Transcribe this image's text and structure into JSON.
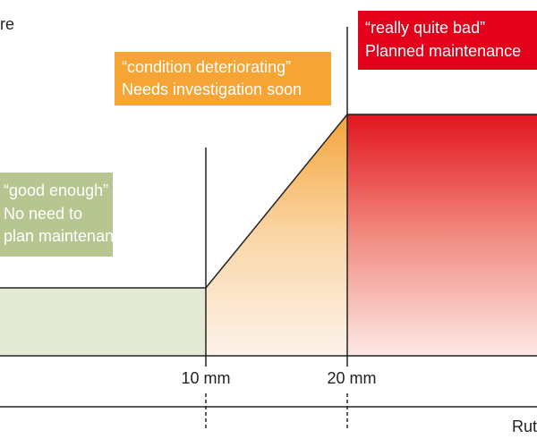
{
  "axis_title_cropped": "re",
  "zones": [
    {
      "quote": "“good enough”",
      "lines": [
        "No need to",
        "plan maintenance"
      ]
    },
    {
      "quote": "“condition deteriorating”",
      "lines": [
        "Needs investigation soon"
      ]
    },
    {
      "quote": "“really quite bad”",
      "lines": [
        "Planned maintenance"
      ]
    }
  ],
  "thresholds": [
    "10 mm",
    "20 mm"
  ],
  "x_axis_title_cropped": "Rut"
}
